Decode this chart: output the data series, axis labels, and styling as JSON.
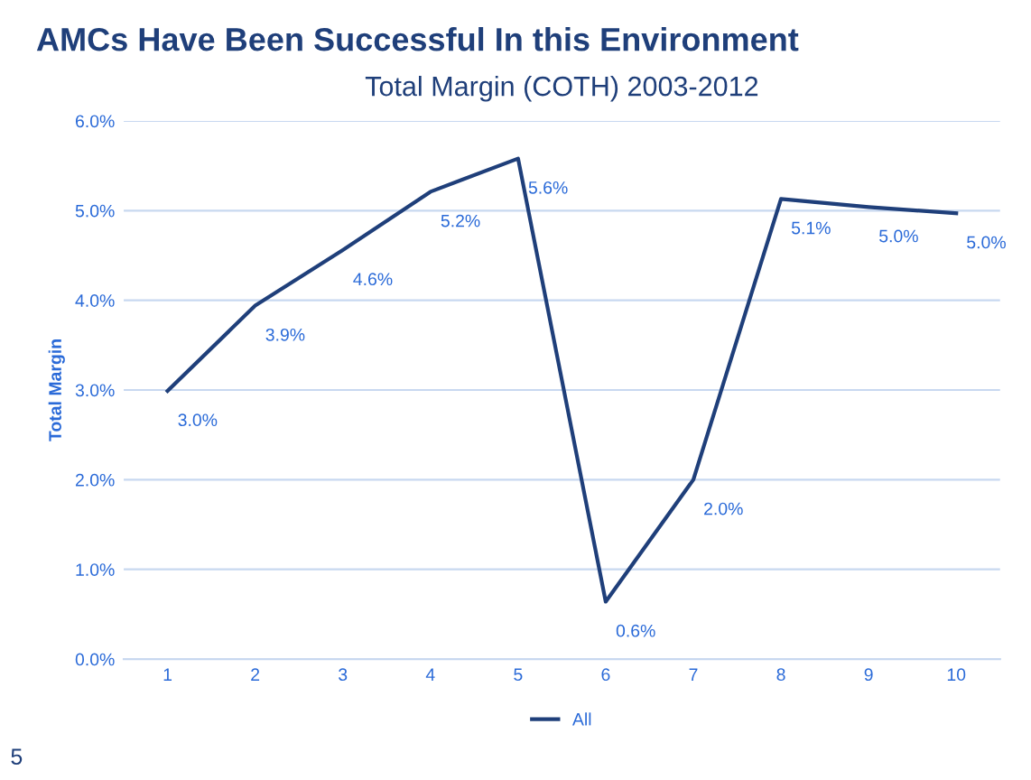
{
  "chart_data": {
    "type": "line",
    "title": "AMCs Have Been Successful In this Environment",
    "subtitle": "Total Margin (COTH) 2003-2012",
    "ylabel": "Total Margin",
    "categories": [
      "1",
      "2",
      "3",
      "4",
      "5",
      "6",
      "7",
      "8",
      "9",
      "10"
    ],
    "series": [
      {
        "name": "All",
        "color": "#1f3f7a",
        "values": [
          2.99,
          3.94,
          4.56,
          5.21,
          5.58,
          0.64,
          2.0,
          5.13,
          5.04,
          4.97
        ],
        "value_labels": [
          "3.0%",
          "3.9%",
          "4.6%",
          "5.2%",
          "5.6%",
          "0.6%",
          "2.0%",
          "5.1%",
          "5.0%",
          "5.0%"
        ]
      }
    ],
    "ylim": [
      0,
      6
    ],
    "yticks": [
      {
        "value": 0,
        "label": "0.0%"
      },
      {
        "value": 1,
        "label": "1.0%"
      },
      {
        "value": 2,
        "label": "2.0%"
      },
      {
        "value": 3,
        "label": "3.0%"
      },
      {
        "value": 4,
        "label": "4.0%"
      },
      {
        "value": 5,
        "label": "5.0%"
      },
      {
        "value": 6,
        "label": "6.0%"
      }
    ],
    "grid": "y",
    "legend": "bottom",
    "marker": "none",
    "line_style": "solid",
    "annotations": [
      "5"
    ]
  }
}
